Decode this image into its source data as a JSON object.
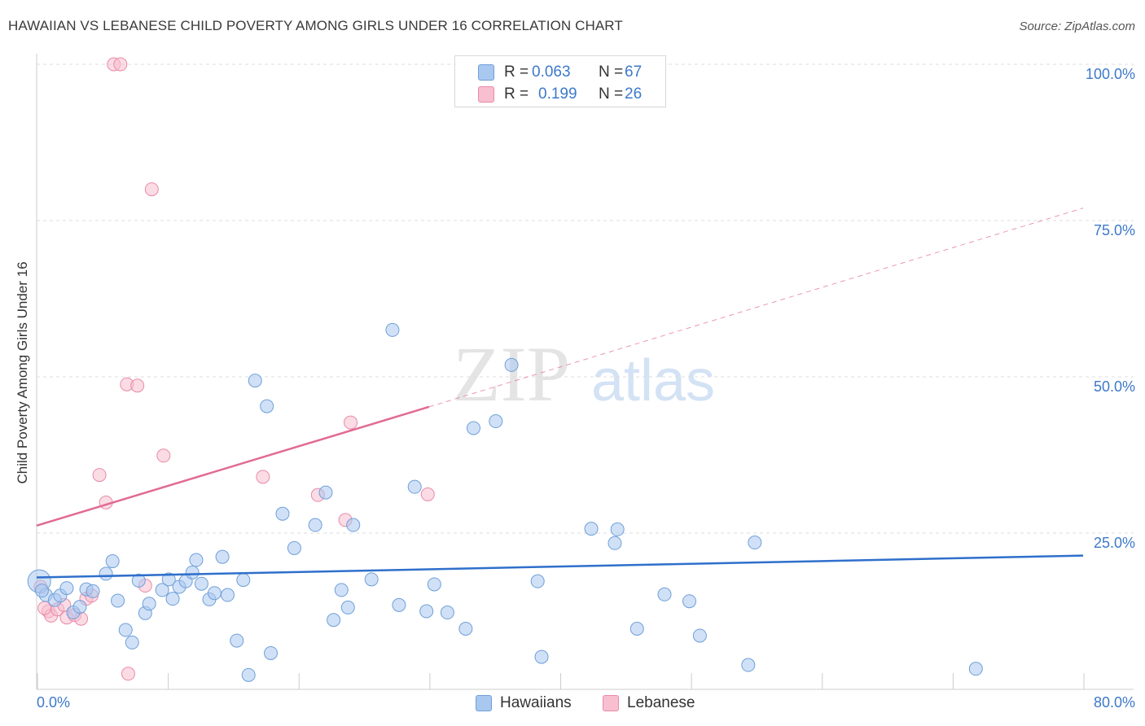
{
  "title": "HAWAIIAN VS LEBANESE CHILD POVERTY AMONG GIRLS UNDER 16 CORRELATION CHART",
  "source": "Source: ZipAtlas.com",
  "watermark": {
    "zip": "ZIP",
    "atlas": "atlas"
  },
  "legend": {
    "hawaiians": {
      "r_label": "R =",
      "r_value": "0.063",
      "n_label": "N =",
      "n_value": "67"
    },
    "lebanese": {
      "r_label": "R =",
      "r_value": "0.199",
      "n_label": "N =",
      "n_value": "26"
    }
  },
  "bottom_legend": {
    "hawaiians": "Hawaiians",
    "lebanese": "Lebanese"
  },
  "colors": {
    "hawaiians_fill": "#a9c8f0",
    "hawaiians_stroke": "#6f9fd8",
    "hawaiians_line": "#2f6fcb",
    "lebanese_fill": "#f7bfd0",
    "lebanese_stroke": "#e98aa8",
    "lebanese_line": "#e26a93",
    "grid": "#dddddd",
    "tick_label": "#3d79c9"
  },
  "chart_data": {
    "type": "scatter",
    "title": "HAWAIIAN VS LEBANESE CHILD POVERTY AMONG GIRLS UNDER 16 CORRELATION CHART",
    "xlabel": "",
    "ylabel": "Child Poverty Among Girls Under 16",
    "xlim": [
      0,
      80
    ],
    "ylim": [
      0,
      100
    ],
    "x_tick_labels": [
      "0.0%",
      "80.0%"
    ],
    "y_ticks": [
      25,
      50,
      75,
      100
    ],
    "y_tick_labels": [
      "25.0%",
      "50.0%",
      "75.0%",
      "100.0%"
    ],
    "grid": true,
    "series": [
      {
        "name": "Hawaiians",
        "points": [
          [
            0.2,
            17.3
          ],
          [
            0.7,
            15.1
          ],
          [
            1.4,
            14.3
          ],
          [
            1.8,
            15.0
          ],
          [
            2.3,
            16.2
          ],
          [
            2.8,
            12.3
          ],
          [
            3.3,
            13.2
          ],
          [
            3.8,
            16.0
          ],
          [
            4.3,
            15.7
          ],
          [
            5.3,
            18.5
          ],
          [
            5.8,
            20.5
          ],
          [
            6.2,
            14.2
          ],
          [
            6.8,
            9.5
          ],
          [
            7.3,
            7.5
          ],
          [
            7.8,
            17.4
          ],
          [
            8.3,
            12.2
          ],
          [
            8.6,
            13.7
          ],
          [
            9.6,
            15.9
          ],
          [
            10.1,
            17.6
          ],
          [
            10.4,
            14.5
          ],
          [
            10.9,
            16.4
          ],
          [
            11.4,
            17.3
          ],
          [
            11.9,
            18.7
          ],
          [
            12.2,
            20.7
          ],
          [
            12.6,
            16.9
          ],
          [
            13.2,
            14.4
          ],
          [
            13.6,
            15.4
          ],
          [
            14.2,
            21.2
          ],
          [
            14.6,
            15.1
          ],
          [
            15.3,
            7.8
          ],
          [
            15.8,
            17.5
          ],
          [
            16.2,
            2.3
          ],
          [
            16.7,
            49.4
          ],
          [
            17.6,
            45.3
          ],
          [
            17.9,
            5.8
          ],
          [
            18.8,
            28.1
          ],
          [
            19.7,
            22.6
          ],
          [
            21.3,
            26.3
          ],
          [
            22.1,
            31.5
          ],
          [
            22.7,
            11.1
          ],
          [
            23.3,
            15.9
          ],
          [
            23.8,
            13.1
          ],
          [
            24.2,
            26.3
          ],
          [
            25.6,
            17.6
          ],
          [
            27.2,
            57.5
          ],
          [
            27.7,
            13.5
          ],
          [
            28.9,
            32.4
          ],
          [
            29.8,
            12.5
          ],
          [
            30.4,
            16.8
          ],
          [
            31.4,
            12.3
          ],
          [
            32.8,
            9.7
          ],
          [
            33.4,
            41.8
          ],
          [
            35.1,
            42.9
          ],
          [
            36.3,
            51.9
          ],
          [
            38.3,
            17.3
          ],
          [
            38.6,
            5.2
          ],
          [
            42.4,
            25.7
          ],
          [
            44.2,
            23.4
          ],
          [
            44.4,
            25.6
          ],
          [
            45.9,
            9.7
          ],
          [
            48.0,
            15.2
          ],
          [
            49.9,
            14.1
          ],
          [
            50.7,
            8.6
          ],
          [
            54.4,
            3.9
          ],
          [
            54.9,
            23.5
          ],
          [
            71.8,
            3.3
          ],
          [
            0.4,
            15.8
          ]
        ],
        "trend": {
          "x": [
            0,
            80
          ],
          "y": [
            17.9,
            21.4
          ]
        }
      },
      {
        "name": "Lebanese",
        "points": [
          [
            0.3,
            16.4
          ],
          [
            0.9,
            12.5
          ],
          [
            1.1,
            11.8
          ],
          [
            1.6,
            12.8
          ],
          [
            2.1,
            13.5
          ],
          [
            2.3,
            11.5
          ],
          [
            2.9,
            11.9
          ],
          [
            3.4,
            11.3
          ],
          [
            3.8,
            14.5
          ],
          [
            4.2,
            15.0
          ],
          [
            4.8,
            34.3
          ],
          [
            5.3,
            29.9
          ],
          [
            5.9,
            100
          ],
          [
            6.4,
            100
          ],
          [
            6.9,
            48.8
          ],
          [
            7.0,
            2.5
          ],
          [
            7.7,
            48.6
          ],
          [
            8.3,
            16.6
          ],
          [
            8.8,
            80.0
          ],
          [
            9.7,
            37.4
          ],
          [
            17.3,
            34.0
          ],
          [
            21.5,
            31.1
          ],
          [
            23.6,
            27.1
          ],
          [
            24.0,
            42.7
          ],
          [
            29.9,
            31.2
          ],
          [
            0.6,
            13.0
          ]
        ],
        "trend": {
          "x": [
            0,
            30
          ],
          "y": [
            26.2,
            45.2
          ]
        },
        "trend_dashed": {
          "x": [
            30,
            80
          ],
          "y": [
            45.2,
            77.0
          ]
        }
      }
    ]
  }
}
